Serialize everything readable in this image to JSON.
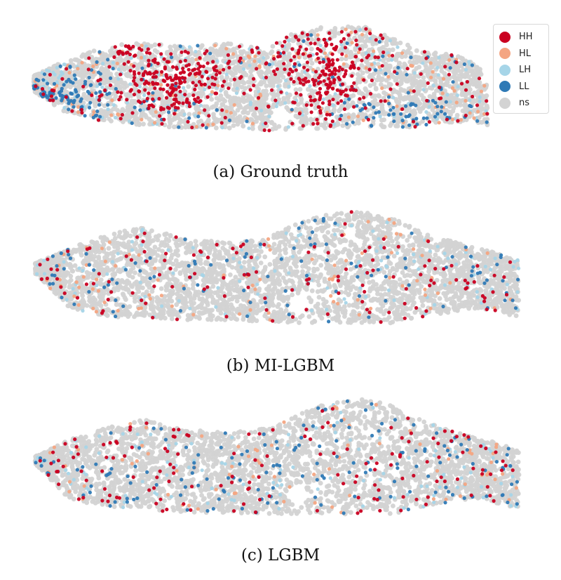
{
  "colors": {
    "HH": "#ca0020",
    "HL": "#f4a582",
    "LH": "#a6d5e8",
    "LL": "#2f7ab6",
    "ns": "#d3d3d3"
  },
  "legend": [
    {
      "label": "HH",
      "key": "HH"
    },
    {
      "label": "HL",
      "key": "HL"
    },
    {
      "label": "LH",
      "key": "LH"
    },
    {
      "label": "LL",
      "key": "LL"
    },
    {
      "label": "ns",
      "key": "ns"
    }
  ],
  "panels": [
    {
      "caption": "(a) Ground truth",
      "category_mix": {
        "HH": 0.18,
        "HL": 0.05,
        "LH": 0.07,
        "LL": 0.1,
        "ns": 0.6
      }
    },
    {
      "caption": "(b) MI-LGBM",
      "category_mix": {
        "HH": 0.05,
        "HL": 0.04,
        "LH": 0.05,
        "LL": 0.05,
        "ns": 0.81
      }
    },
    {
      "caption": "(c) LGBM",
      "category_mix": {
        "HH": 0.06,
        "HL": 0.04,
        "LH": 0.05,
        "LL": 0.06,
        "ns": 0.79
      }
    }
  ]
}
